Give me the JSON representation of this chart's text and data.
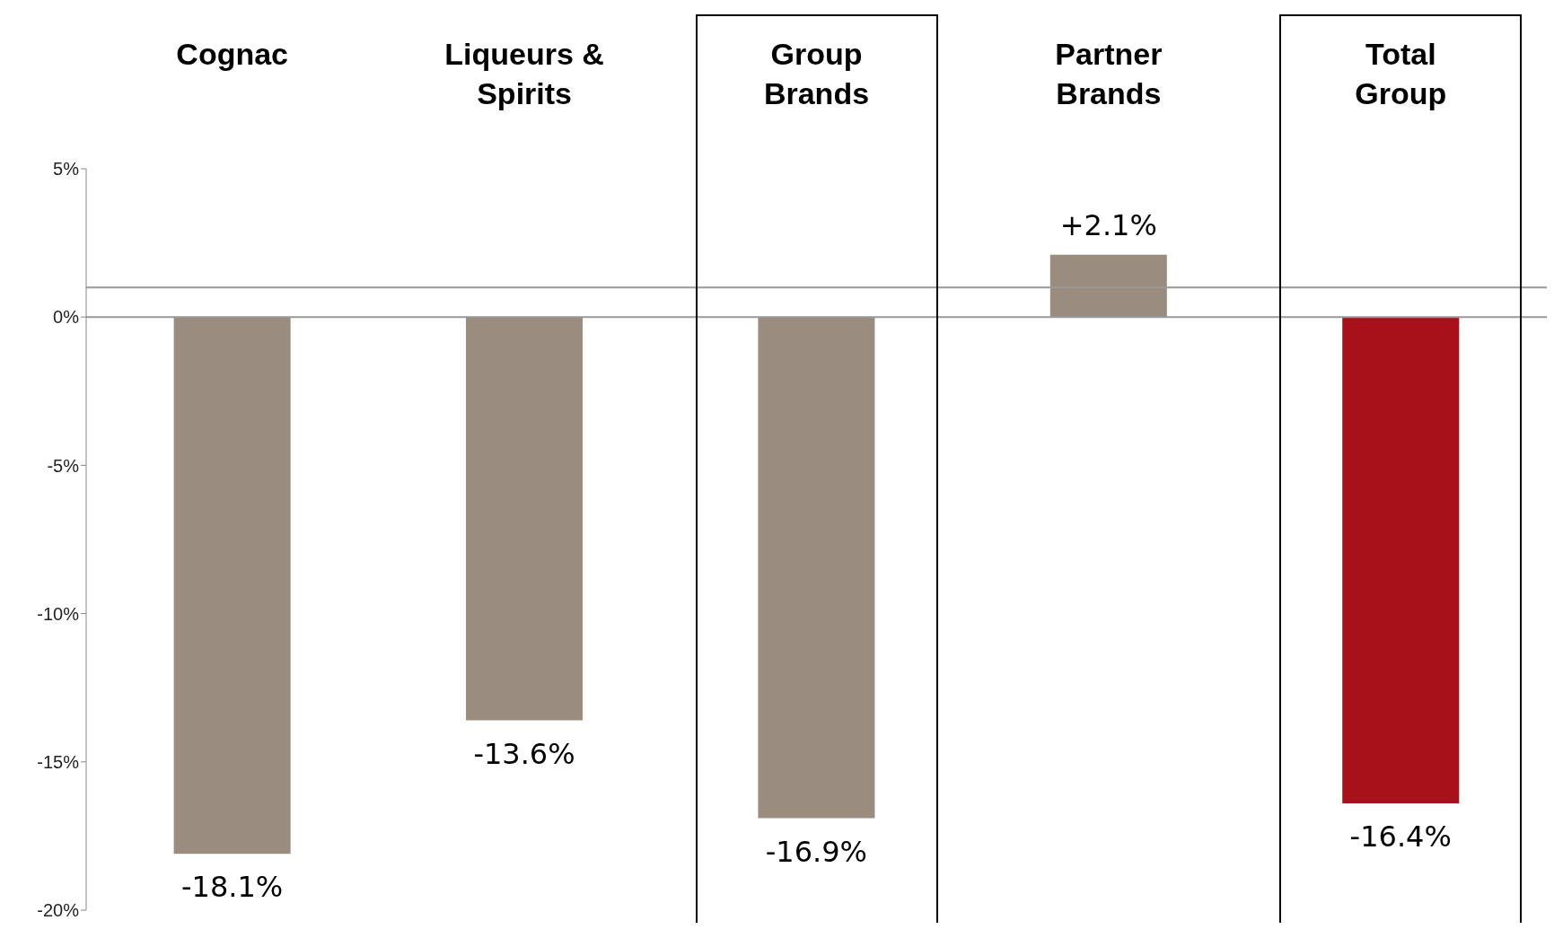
{
  "chart_data": {
    "type": "bar",
    "categories": [
      "Cognac",
      "Liqueurs & Spirits",
      "Group Brands",
      "Partner Brands",
      "Total Group"
    ],
    "values": [
      -18.1,
      -13.6,
      -16.9,
      2.1,
      -16.4
    ],
    "colors": [
      "#9a8d7f",
      "#9a8d7f",
      "#9a8d7f",
      "#9a8d7f",
      "#a8101a"
    ],
    "value_labels": [
      "-18.1%",
      "-13.6%",
      "-16.9%",
      "+2.1%",
      "-16.4%"
    ],
    "ylim": [
      -20,
      5
    ],
    "yticks": [
      {
        "value": 5,
        "label": "5%"
      },
      {
        "value": 0,
        "label": "0%"
      },
      {
        "value": -5,
        "label": "-5%"
      },
      {
        "value": -10,
        "label": "-10%"
      },
      {
        "value": -15,
        "label": "-15%"
      },
      {
        "value": -20,
        "label": "-20%"
      }
    ],
    "ref_lines": [
      {
        "axis": "y",
        "value": 0,
        "color": "#999999"
      },
      {
        "axis": "y",
        "value": 1,
        "color": "#999999"
      }
    ],
    "relative": false
  }
}
